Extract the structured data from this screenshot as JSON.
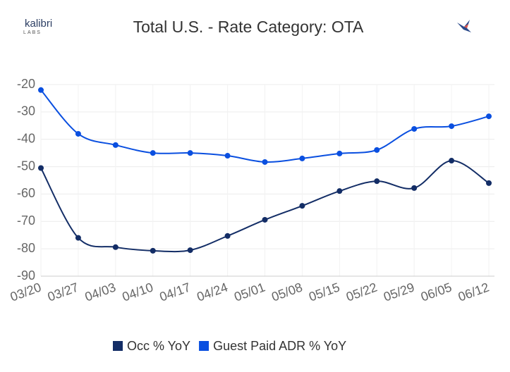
{
  "header": {
    "logo": "kalibri",
    "logo_sub": "LABS"
  },
  "chart_data": {
    "type": "line",
    "title": "Total U.S. - Rate Category: OTA",
    "categories": [
      "03/20",
      "03/27",
      "04/03",
      "04/10",
      "04/17",
      "04/24",
      "05/01",
      "05/08",
      "05/15",
      "05/22",
      "05/29",
      "06/05",
      "06/12"
    ],
    "series": [
      {
        "name": "Occ % YoY",
        "color": "#132d66",
        "values": [
          -50.5,
          -76,
          -79.4,
          -80.7,
          -80.5,
          -75.3,
          -69.4,
          -64.3,
          -58.9,
          -55.3,
          -57.8,
          -47.8,
          -56
        ]
      },
      {
        "name": "Guest Paid ADR % YoY",
        "color": "#0a4fe0",
        "values": [
          -22,
          -38,
          -42.1,
          -45,
          -45,
          -46,
          -48.3,
          -47,
          -45.2,
          -43.9,
          -36.2,
          -35.2,
          -31.6
        ]
      }
    ],
    "ylim": [
      -90,
      -20
    ],
    "yticks": [
      -90,
      -80,
      -70,
      -60,
      -50,
      -40,
      -30,
      -20
    ],
    "grid": true,
    "legend": "bottom"
  }
}
